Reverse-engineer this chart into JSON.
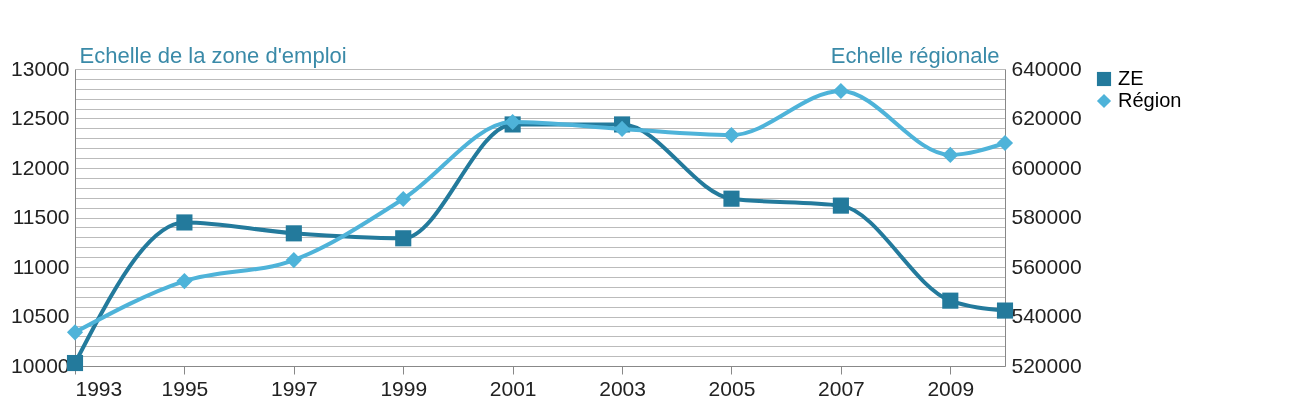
{
  "chart_data": {
    "type": "line",
    "ylabel": "Echelle de la zone d'emploi",
    "y2label": "Echelle régionale",
    "x": [
      1993,
      1995,
      1997,
      1999,
      2001,
      2003,
      2005,
      2007,
      2009,
      2010
    ],
    "series": [
      {
        "name": "ZE",
        "color": "#237a9c",
        "marker": "square",
        "values": [
          10030,
          11450,
          11340,
          11290,
          12440,
          12440,
          11690,
          11620,
          10660,
          10560
        ]
      },
      {
        "name": "Région",
        "color": "#4eb3d9",
        "marker": "diamond",
        "axis": "y2",
        "values": [
          533600,
          554300,
          562800,
          587500,
          618600,
          615800,
          613300,
          631100,
          605300,
          610100
        ]
      }
    ],
    "xlim": [
      1993,
      2010
    ],
    "xticks": [
      1993,
      1995,
      1997,
      1999,
      2001,
      2003,
      2005,
      2007,
      2009
    ],
    "ylim": [
      10000,
      13000
    ],
    "yticks": [
      10000,
      {
        "value": 10100,
        "label": null
      },
      {
        "value": 10200,
        "label": null
      },
      {
        "value": 10300,
        "label": null
      },
      {
        "value": 10400,
        "label": null
      },
      10500,
      {
        "value": 10600,
        "label": null
      },
      {
        "value": 10700,
        "label": null
      },
      {
        "value": 10800,
        "label": null
      },
      {
        "value": 10900,
        "label": null
      },
      11000,
      {
        "value": 11100,
        "label": null
      },
      {
        "value": 11200,
        "label": null
      },
      {
        "value": 11300,
        "label": null
      },
      {
        "value": 11400,
        "label": null
      },
      11500,
      {
        "value": 11600,
        "label": null
      },
      {
        "value": 11700,
        "label": null
      },
      {
        "value": 11800,
        "label": null
      },
      {
        "value": 11900,
        "label": null
      },
      12000,
      {
        "value": 12100,
        "label": null
      },
      {
        "value": 12200,
        "label": null
      },
      {
        "value": 12300,
        "label": null
      },
      {
        "value": 12400,
        "label": null
      },
      12500,
      {
        "value": 12600,
        "label": null
      },
      {
        "value": 12700,
        "label": null
      },
      {
        "value": 12800,
        "label": null
      },
      {
        "value": 12900,
        "label": null
      },
      13000
    ],
    "y2lim": [
      520000,
      640000
    ],
    "y2ticks": [
      520000,
      540000,
      560000,
      580000,
      600000,
      620000,
      640000
    ],
    "grid": "y",
    "legend": "right",
    "line_style": "solid"
  }
}
